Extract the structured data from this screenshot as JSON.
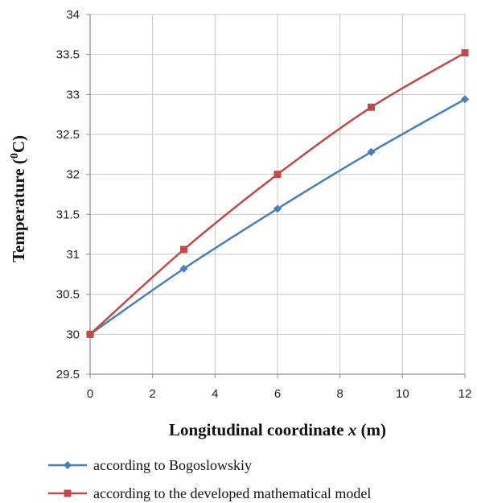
{
  "chart_data": {
    "type": "line",
    "title": "",
    "xlabel": "Longitudinal coordinate x (m)",
    "xlabel_parts": {
      "main": "Longitudinal coordinate ",
      "var": "x",
      "unit": " (m)"
    },
    "ylabel": "Temperature (0C)",
    "ylabel_parts": {
      "main": "Temperature (",
      "sup": "0",
      "unit": "C)"
    },
    "xlim": [
      0,
      12
    ],
    "ylim": [
      29.5,
      34
    ],
    "x_ticks": [
      0,
      2,
      4,
      6,
      8,
      10,
      12
    ],
    "y_ticks": [
      29.5,
      30,
      30.5,
      31,
      31.5,
      32,
      32.5,
      33,
      33.5,
      34
    ],
    "grid": true,
    "legend_position": "bottom",
    "series": [
      {
        "name": "according to Bogoslowskiy",
        "color": "#4a7ebb",
        "marker": "diamond",
        "x": [
          0,
          3,
          6,
          9,
          12
        ],
        "y": [
          30.0,
          30.82,
          31.57,
          32.28,
          32.94
        ]
      },
      {
        "name": "according to the developed mathematical model",
        "color": "#be4b48",
        "marker": "square",
        "x": [
          0,
          3,
          6,
          9,
          12
        ],
        "y": [
          30.0,
          31.06,
          32.0,
          32.84,
          33.52
        ]
      }
    ]
  }
}
